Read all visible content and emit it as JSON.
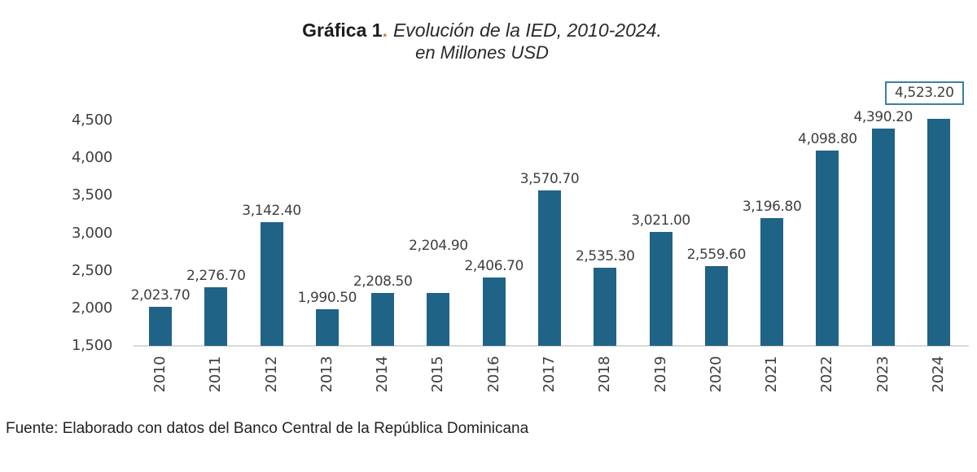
{
  "title": {
    "prefix": "Gráfica 1",
    "dot": ".",
    "rest": "Evolución de la IED, 2010-2024.",
    "line2": "en Millones USD",
    "dot_color": "#c8882f"
  },
  "footer": {
    "source": "Fuente: Elaborado con datos del Banco Central de la República Dominicana"
  },
  "chart_data": {
    "type": "bar",
    "title": "Gráfica 1. Evolución de la IED, 2010-2024. en Millones USD",
    "xlabel": "",
    "ylabel": "",
    "categories": [
      "2010",
      "2011",
      "2012",
      "2013",
      "2014",
      "2015",
      "2016",
      "2017",
      "2018",
      "2019",
      "2020",
      "2021",
      "2022",
      "2023",
      "2024"
    ],
    "values": [
      2023.7,
      2276.7,
      3142.4,
      1990.5,
      2208.5,
      2204.9,
      2406.7,
      3570.7,
      2535.3,
      3021.0,
      2559.6,
      3196.8,
      4098.8,
      4390.2,
      4523.2
    ],
    "value_labels": [
      "2,023.70",
      "2,276.70",
      "3,142.40",
      "1,990.50",
      "2,208.50",
      "2,204.90",
      "2,406.70",
      "3,570.70",
      "2,535.30",
      "3,021.00",
      "2,559.60",
      "3,196.80",
      "4,098.80",
      "4,390.20",
      "4,523.20"
    ],
    "yticks": [
      1500,
      2000,
      2500,
      3000,
      3500,
      4000,
      4500
    ],
    "ytick_labels": [
      "1,500",
      "2,000",
      "2,500",
      "3,000",
      "3,500",
      "4,000",
      "4,500"
    ],
    "ylim": [
      1500,
      4500
    ],
    "grid": false,
    "legend": "none",
    "bar_color": "#1f6387",
    "label_color": "#3f3f3f",
    "axis_line_color": "#d8d8d8",
    "boxed_label_index": 14,
    "boxed_label_border_color": "#3d7fa3",
    "raised_label_index": 5
  }
}
